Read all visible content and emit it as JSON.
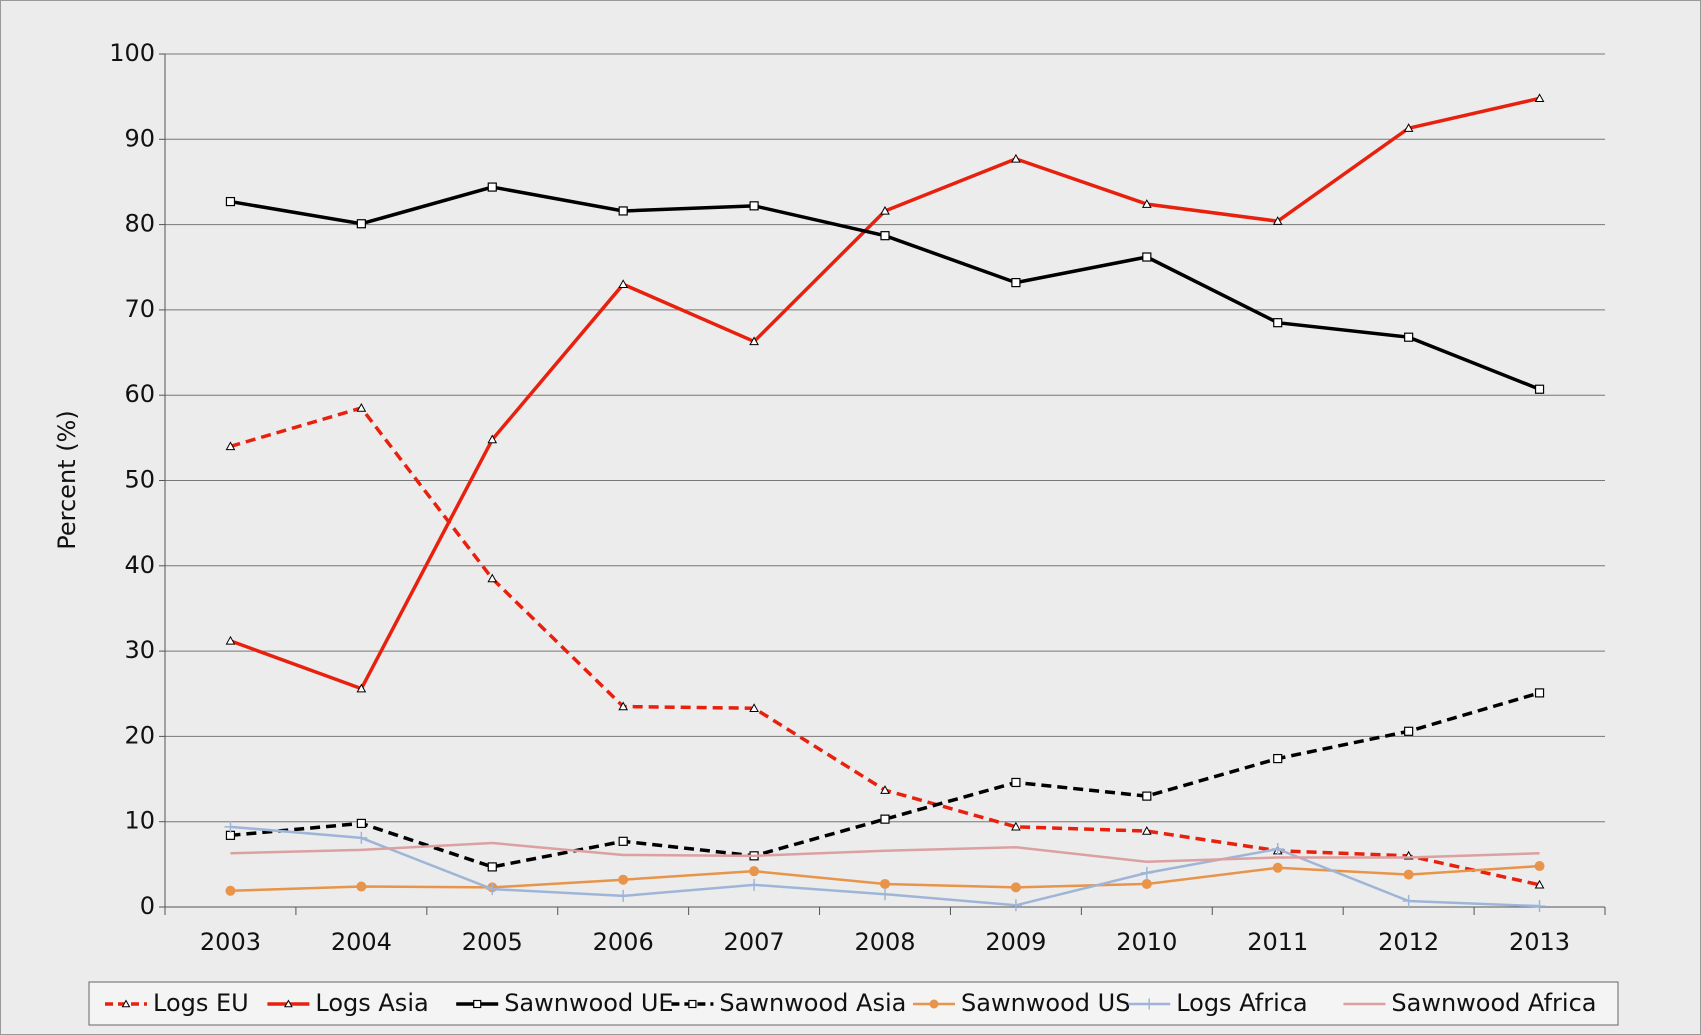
{
  "chart_data": {
    "type": "line",
    "y_label": "Percent (%)",
    "categories": [
      "2003",
      "2004",
      "2005",
      "2006",
      "2007",
      "2008",
      "2009",
      "2010",
      "2011",
      "2012",
      "2013"
    ],
    "ylim": [
      0,
      100
    ],
    "yticks": [
      0,
      10,
      20,
      30,
      40,
      50,
      60,
      70,
      80,
      90,
      100
    ],
    "grid": true,
    "legend": "bottom",
    "series": [
      {
        "name": "Logs EU",
        "color": "#e8210e",
        "dash": true,
        "marker": "triangle",
        "values": [
          54,
          58.5,
          38.5,
          23.5,
          23.3,
          13.7,
          9.4,
          8.9,
          6.6,
          6.0,
          2.6
        ]
      },
      {
        "name": "Logs Asia",
        "color": "#e8210e",
        "dash": false,
        "marker": "triangle",
        "values": [
          31.2,
          25.6,
          54.8,
          73,
          66.3,
          81.6,
          87.7,
          82.4,
          80.4,
          91.3,
          94.8
        ]
      },
      {
        "name": "Sawnwood UE",
        "color": "#000000",
        "dash": false,
        "marker": "square",
        "values": [
          82.7,
          80.1,
          84.4,
          81.6,
          82.2,
          78.7,
          73.2,
          76.2,
          68.5,
          66.8,
          60.7
        ]
      },
      {
        "name": "Sawnwood Asia",
        "color": "#000000",
        "dash": true,
        "marker": "square",
        "values": [
          8.4,
          9.8,
          4.7,
          7.7,
          6.0,
          10.3,
          14.6,
          13.0,
          17.4,
          20.6,
          25.1
        ]
      },
      {
        "name": "Sawnwood US",
        "color": "#e8944a",
        "dash": false,
        "marker": "circle",
        "values": [
          1.9,
          2.4,
          2.3,
          3.2,
          4.2,
          2.7,
          2.3,
          2.7,
          4.6,
          3.8,
          4.8
        ]
      },
      {
        "name": "Logs Africa",
        "color": "#9fb5d8",
        "dash": false,
        "marker": "plus",
        "values": [
          9.4,
          8.1,
          2.1,
          1.3,
          2.6,
          1.5,
          0.2,
          4.0,
          6.8,
          0.7,
          0.1
        ]
      },
      {
        "name": "Sawnwood Africa",
        "color": "#dba0a0",
        "dash": false,
        "marker": "none",
        "values": [
          6.3,
          6.7,
          7.5,
          6.1,
          6.0,
          6.6,
          7.0,
          5.3,
          5.8,
          5.8,
          6.3
        ]
      }
    ]
  }
}
